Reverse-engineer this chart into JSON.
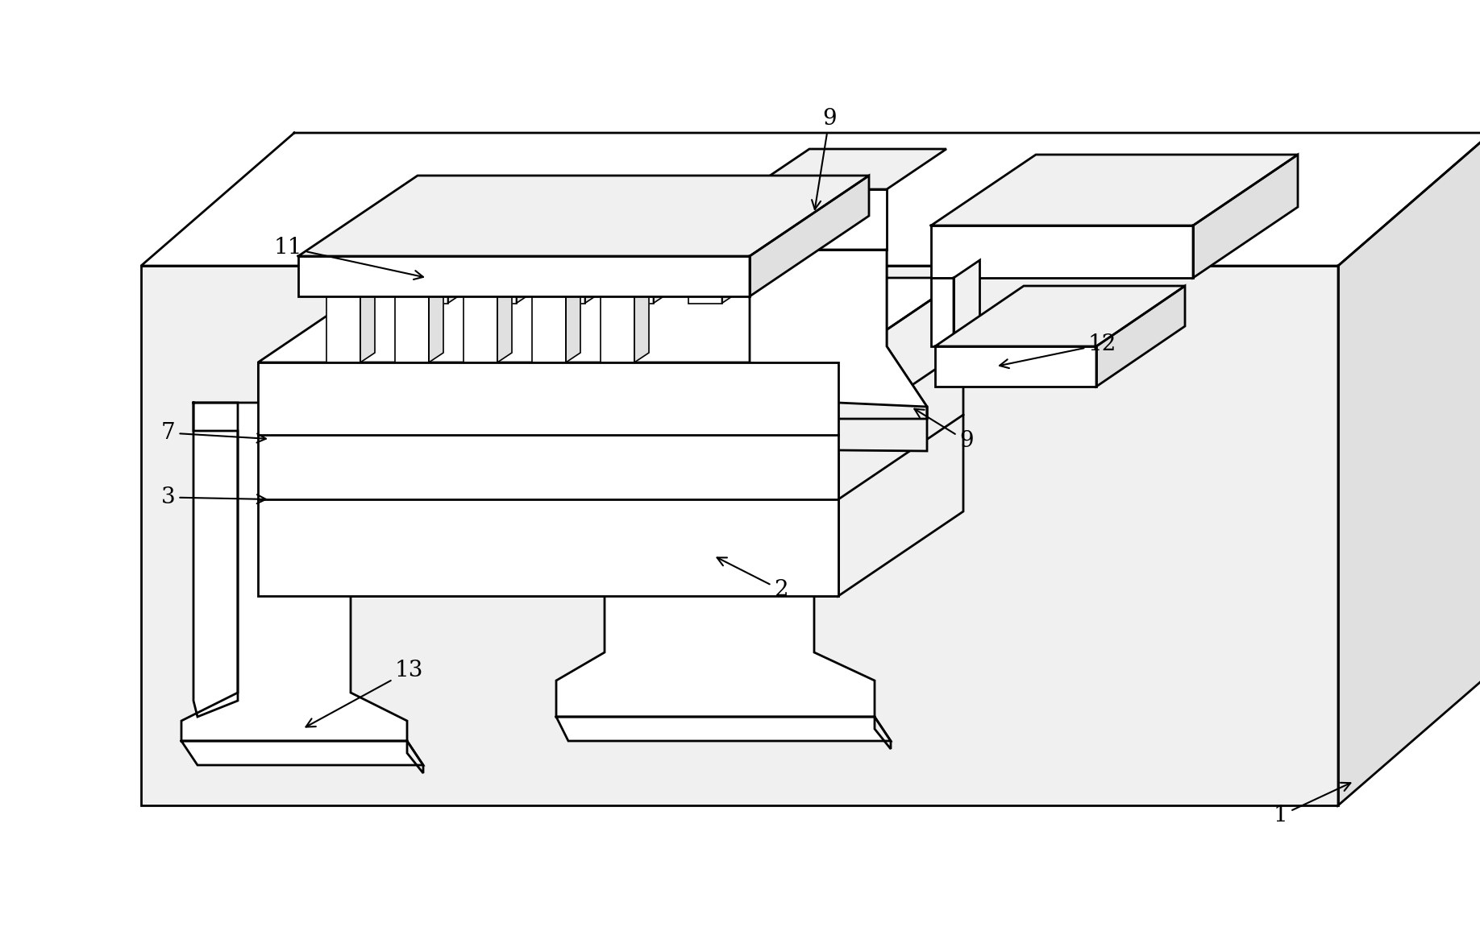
{
  "figure_width": 18.36,
  "figure_height": 11.51,
  "dpi": 100,
  "background_color": "#ffffff",
  "lc": "#000000",
  "lw": 2.0,
  "lw_thin": 1.2,
  "fc_white": "#ffffff",
  "fc_light": "#f0f0f0",
  "fc_mid": "#e0e0e0",
  "fc_dark": "#c8c8c8",
  "fc_substrate": "#e8e8e8",
  "label_fontsize": 20,
  "label_fontsize_sm": 18
}
